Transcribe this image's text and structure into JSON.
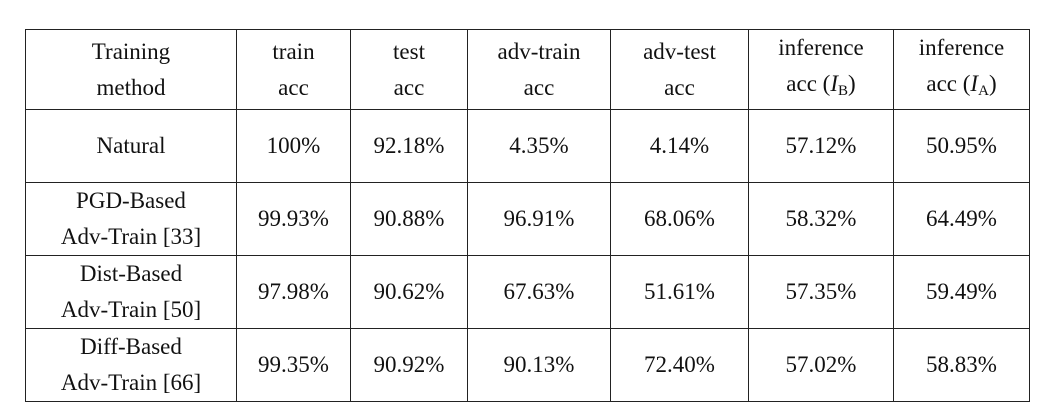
{
  "table": {
    "headers": [
      {
        "line1": "Training",
        "line2": "method"
      },
      {
        "line1": "train",
        "line2": "acc"
      },
      {
        "line1": "test",
        "line2": "acc"
      },
      {
        "line1": "adv-train",
        "line2": "acc"
      },
      {
        "line1": "adv-test",
        "line2": "acc"
      },
      {
        "line1": "inference",
        "line2_prefix": "acc (",
        "symbol": "I",
        "subscript": "B",
        "line2_suffix": ")"
      },
      {
        "line1": "inference",
        "line2_prefix": "acc (",
        "symbol": "I",
        "subscript": "A",
        "line2_suffix": ")"
      }
    ],
    "rows": [
      {
        "method_line1": "Natural",
        "method_line2": "",
        "values": [
          "100%",
          "92.18%",
          "4.35%",
          "4.14%",
          "57.12%",
          "50.95%"
        ],
        "bold_index": 4
      },
      {
        "method_line1": "PGD-Based",
        "method_line2": "Adv-Train [33]",
        "values": [
          "99.93%",
          "90.88%",
          "96.91%",
          "68.06%",
          "58.32%",
          "64.49%"
        ],
        "bold_index": 5
      },
      {
        "method_line1": "Dist-Based",
        "method_line2": "Adv-Train [50]",
        "values": [
          "97.98%",
          "90.62%",
          "67.63%",
          "51.61%",
          "57.35%",
          "59.49%"
        ],
        "bold_index": 5
      },
      {
        "method_line1": "Diff-Based",
        "method_line2": "Adv-Train [66]",
        "values": [
          "99.35%",
          "90.92%",
          "90.13%",
          "72.40%",
          "57.02%",
          "58.83%"
        ],
        "bold_index": 5
      }
    ]
  }
}
